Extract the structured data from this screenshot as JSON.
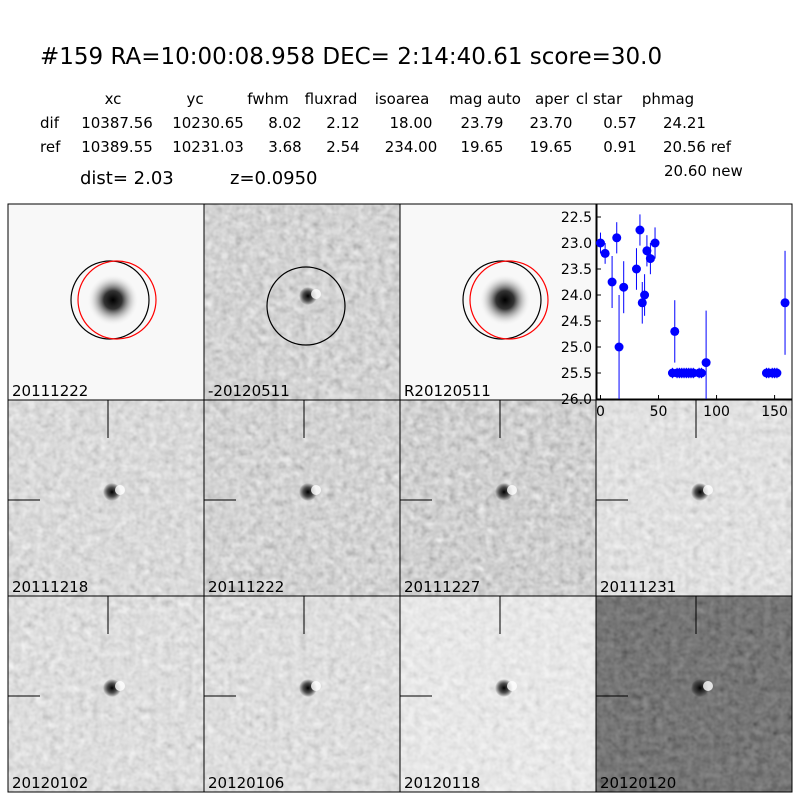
{
  "header": {
    "title": "#159   RA=10:00:08.958 DEC= 2:14:40.61      score=30.0",
    "dist": "dist=  2.03",
    "z": "z=0.0950",
    "note": "20.60 new"
  },
  "table": {
    "columns": [
      "xc",
      "yc",
      "fwhm",
      "fluxrad",
      "isoarea",
      "mag auto",
      "aper",
      "cl star",
      "phmag"
    ],
    "rows": [
      {
        "label": "dif",
        "values": [
          "10387.56",
          "10230.65",
          "8.02",
          "2.12",
          "18.00",
          "23.79",
          "23.70",
          "0.57",
          "24.21"
        ]
      },
      {
        "label": "ref",
        "values": [
          "10389.55",
          "10231.03",
          "3.68",
          "2.54",
          "234.00",
          "19.65",
          "19.65",
          "0.91",
          "20.56 ref"
        ]
      }
    ]
  },
  "panels": [
    {
      "label": "20111222"
    },
    {
      "label": "-20120511"
    },
    {
      "label": "R20120511"
    },
    {
      "label": "20111218"
    },
    {
      "label": "20111222",
      "label_color": "#ff0000"
    },
    {
      "label": "20111227"
    },
    {
      "label": "20111231"
    },
    {
      "label": "20120102"
    },
    {
      "label": "20120106"
    },
    {
      "label": "20120118"
    },
    {
      "label": "20120120"
    }
  ],
  "chart_data": {
    "type": "scatter",
    "color": "#0000ff",
    "x": [
      0,
      4,
      10,
      14,
      16,
      20,
      31,
      34,
      36,
      38,
      40,
      43,
      47,
      62,
      64,
      66,
      68,
      70,
      72,
      74,
      76,
      78,
      80,
      85,
      87,
      91,
      143,
      145,
      148,
      150,
      152,
      159
    ],
    "values": [
      23.0,
      23.2,
      23.75,
      22.9,
      25.0,
      23.85,
      23.5,
      22.75,
      24.15,
      24.0,
      23.15,
      23.3,
      23.0,
      25.5,
      24.7,
      25.5,
      25.5,
      25.5,
      25.5,
      25.5,
      25.5,
      25.5,
      25.5,
      25.5,
      25.5,
      25.3,
      25.5,
      25.5,
      25.5,
      25.5,
      25.5,
      24.15
    ],
    "errors": [
      0.2,
      0.2,
      0.5,
      0.3,
      1.0,
      0.5,
      0.4,
      0.3,
      0.4,
      0.4,
      0.3,
      0.3,
      0.3,
      0.1,
      0.6,
      0.1,
      0.1,
      0.1,
      0.1,
      0.1,
      0.1,
      0.1,
      0.1,
      0.1,
      0.1,
      1.0,
      0.1,
      0.1,
      0.1,
      0.1,
      0.1,
      1.0
    ],
    "xlim": [
      -3,
      165
    ],
    "xticks": [
      0,
      50,
      100,
      150
    ],
    "ylim": [
      26.0,
      22.25
    ],
    "inverted": true,
    "yticks": [
      22.5,
      {
        "value": 23,
        "label": "23.0"
      },
      23.5,
      {
        "value": 24,
        "label": "24.0"
      },
      24.5,
      {
        "value": 25,
        "label": "25.0"
      },
      25.5,
      {
        "value": 26,
        "label": "26.0"
      }
    ]
  }
}
